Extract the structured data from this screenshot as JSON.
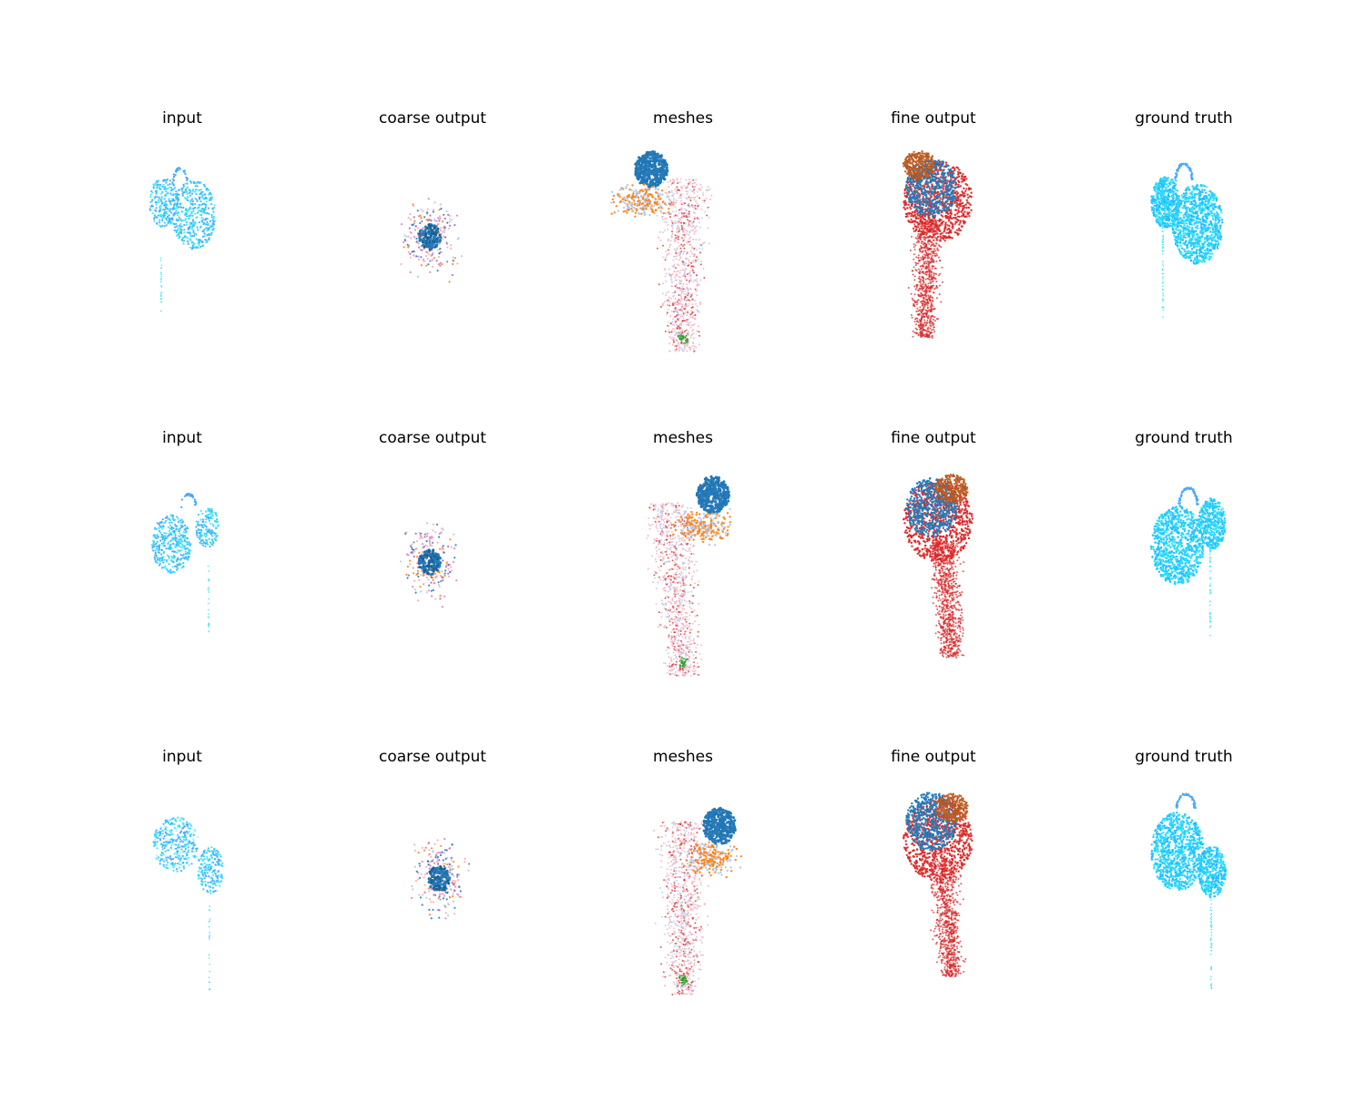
{
  "figure": {
    "rows": [
      {
        "panels": [
          {
            "title": "input",
            "kind": "input"
          },
          {
            "title": "coarse output",
            "kind": "coarse"
          },
          {
            "title": "meshes",
            "kind": "meshes"
          },
          {
            "title": "fine output",
            "kind": "fine"
          },
          {
            "title": "ground truth",
            "kind": "gt"
          }
        ]
      },
      {
        "panels": [
          {
            "title": "input",
            "kind": "input"
          },
          {
            "title": "coarse output",
            "kind": "coarse"
          },
          {
            "title": "meshes",
            "kind": "meshes"
          },
          {
            "title": "fine output",
            "kind": "fine"
          },
          {
            "title": "ground truth",
            "kind": "gt"
          }
        ]
      },
      {
        "panels": [
          {
            "title": "input",
            "kind": "input"
          },
          {
            "title": "coarse output",
            "kind": "coarse"
          },
          {
            "title": "meshes",
            "kind": "meshes"
          },
          {
            "title": "fine output",
            "kind": "fine"
          },
          {
            "title": "ground truth",
            "kind": "gt"
          }
        ]
      }
    ]
  },
  "colors": {
    "cyan_light": "#3ee6f5",
    "cyan_mid": "#2ec8ff",
    "blue_light": "#4aa8ff",
    "blue": "#1f77b4",
    "orange": "#ff7f0e",
    "red": "#d62728",
    "brown": "#b5561e",
    "green": "#2ca02c",
    "pink": "#f4a6b4",
    "lightblue": "#aec7e8",
    "purple": "#9467bd"
  }
}
